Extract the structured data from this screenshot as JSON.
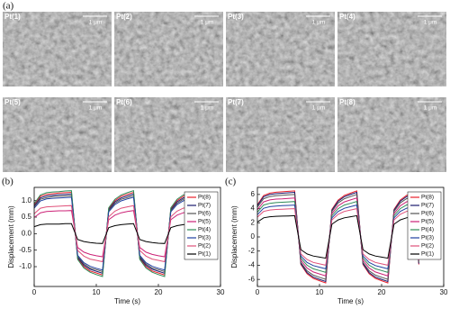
{
  "panel_a": {
    "label": "(a)",
    "images": [
      {
        "label": "Pt(1)",
        "scale": "1 μm"
      },
      {
        "label": "Pt(2)",
        "scale": "1 μm"
      },
      {
        "label": "Pt(3)",
        "scale": "1 μm"
      },
      {
        "label": "Pt(4)",
        "scale": "1 μm"
      },
      {
        "label": "Pt(5)",
        "scale": "1 μm"
      },
      {
        "label": "Pt(6)",
        "scale": "1 μm"
      },
      {
        "label": "Pt(7)",
        "scale": "1 μm"
      },
      {
        "label": "Pt(8)",
        "scale": "1 μm"
      }
    ]
  },
  "chart_data": [
    {
      "type": "line",
      "panel_label": "(b)",
      "x_label": "Time (s)",
      "y_label": "Displacement (mm)",
      "xlim": [
        0,
        30
      ],
      "xticks": [
        0,
        10,
        20,
        30
      ],
      "ylim": [
        -1.6,
        1.4
      ],
      "yticks": [
        {
          "value": -1,
          "label": "-1.0"
        },
        {
          "value": -0.5,
          "label": "-0.5"
        },
        {
          "value": 0,
          "label": "0.0"
        },
        {
          "value": 0.5,
          "label": "0.5"
        },
        {
          "value": 1,
          "label": "1.0"
        }
      ],
      "x": [
        0,
        1,
        2,
        3,
        4,
        5,
        6,
        7,
        8,
        9,
        10,
        11,
        12,
        13,
        14,
        15,
        16,
        17,
        18,
        19,
        20,
        21,
        22,
        23,
        24,
        25,
        26
      ],
      "series": [
        {
          "name": "Pt(8)",
          "color": "#e8202a",
          "values": [
            0.88,
            1.13,
            1.19,
            1.21,
            1.23,
            1.24,
            1.25,
            -0.75,
            -1,
            -1.13,
            -1.19,
            -1.25,
            0.75,
            1,
            1.13,
            1.19,
            1.25,
            -0.75,
            -1,
            -1.13,
            -1.19,
            -1.25,
            0.75,
            1,
            1.13,
            1.19,
            -0.75
          ]
        },
        {
          "name": "Pt(7)",
          "color": "#1a1a6e",
          "values": [
            0.84,
            1.08,
            1.14,
            1.16,
            1.18,
            1.19,
            1.2,
            -0.72,
            -0.96,
            -1.08,
            -1.14,
            -1.2,
            0.72,
            0.96,
            1.08,
            1.14,
            1.2,
            -0.72,
            -0.96,
            -1.08,
            -1.14,
            -1.2,
            0.72,
            0.96,
            1.08,
            1.14,
            -0.72
          ]
        },
        {
          "name": "Pt(6)",
          "color": "#555555",
          "values": [
            0.81,
            1.04,
            1.09,
            1.12,
            1.13,
            1.14,
            1.15,
            -0.69,
            -0.92,
            -1.04,
            -1.09,
            -1.15,
            0.69,
            0.92,
            1.04,
            1.09,
            1.15,
            -0.69,
            -0.92,
            -1.04,
            -1.09,
            -1.15,
            0.69,
            0.92,
            1.04,
            1.09,
            -0.69
          ]
        },
        {
          "name": "Pt(5)",
          "color": "#cc2277",
          "values": [
            0.49,
            0.63,
            0.67,
            0.68,
            0.69,
            0.69,
            0.7,
            -0.42,
            -0.56,
            -0.63,
            -0.67,
            -0.7,
            0.42,
            0.56,
            0.63,
            0.67,
            0.7,
            -0.42,
            -0.56,
            -0.63,
            -0.67,
            -0.7,
            0.42,
            0.56,
            0.63,
            0.67,
            -0.42
          ]
        },
        {
          "name": "Pt(4)",
          "color": "#2e8b57",
          "values": [
            0.91,
            1.17,
            1.24,
            1.26,
            1.27,
            1.29,
            1.3,
            -0.78,
            -1.04,
            -1.17,
            -1.24,
            -1.3,
            0.78,
            1.04,
            1.17,
            1.24,
            1.3,
            -0.78,
            -1.04,
            -1.17,
            -1.24,
            -1.3,
            0.78,
            1.04,
            1.17,
            1.24,
            -0.78
          ]
        },
        {
          "name": "Pt(3)",
          "color": "#1f3fa0",
          "values": [
            0.77,
            0.99,
            1.05,
            1.07,
            1.08,
            1.09,
            1.1,
            -0.66,
            -0.88,
            -0.99,
            -1.05,
            -1.1,
            0.66,
            0.88,
            0.99,
            1.05,
            1.1,
            -0.66,
            -0.88,
            -0.99,
            -1.05,
            -1.1,
            0.66,
            0.88,
            0.99,
            1.05,
            -0.66
          ]
        },
        {
          "name": "Pt(2)",
          "color": "#e0507a",
          "values": [
            0.6,
            0.77,
            0.81,
            0.82,
            0.83,
            0.84,
            0.85,
            -0.51,
            -0.68,
            -0.77,
            -0.81,
            -0.85,
            0.51,
            0.68,
            0.77,
            0.81,
            0.85,
            -0.51,
            -0.68,
            -0.77,
            -0.81,
            -0.85,
            0.51,
            0.68,
            0.77,
            0.81,
            -0.51
          ]
        },
        {
          "name": "Pt(1)",
          "color": "#000000",
          "values": [
            0.21,
            0.27,
            0.29,
            0.29,
            0.29,
            0.3,
            0.3,
            -0.18,
            -0.24,
            -0.27,
            -0.29,
            -0.3,
            0.18,
            0.24,
            0.27,
            0.29,
            0.3,
            -0.18,
            -0.24,
            -0.27,
            -0.29,
            -0.3,
            0.18,
            0.24,
            0.27,
            0.29,
            -0.18
          ]
        }
      ]
    },
    {
      "type": "line",
      "panel_label": "(c)",
      "x_label": "Time (s)",
      "y_label": "Displacement (mm)",
      "xlim": [
        0,
        30
      ],
      "xticks": [
        0,
        10,
        20,
        30
      ],
      "ylim": [
        -7,
        7
      ],
      "yticks": [
        -6,
        -4,
        -2,
        0,
        2,
        4,
        6
      ],
      "x": [
        0,
        1,
        2,
        3,
        4,
        5,
        6,
        7,
        8,
        9,
        10,
        11,
        12,
        13,
        14,
        15,
        16,
        17,
        18,
        19,
        20,
        21,
        22,
        23,
        24,
        25,
        26
      ],
      "series": [
        {
          "name": "Pt(8)",
          "color": "#e8202a",
          "values": [
            4.55,
            5.85,
            6.18,
            6.31,
            6.37,
            6.44,
            6.5,
            -3.9,
            -5.2,
            -5.85,
            -6.18,
            -6.5,
            3.9,
            5.2,
            5.85,
            6.18,
            6.5,
            -3.9,
            -5.2,
            -5.85,
            -6.18,
            -6.5,
            3.9,
            5.2,
            5.85,
            6.18,
            -3.9
          ]
        },
        {
          "name": "Pt(7)",
          "color": "#1a1a6e",
          "values": [
            4.41,
            5.67,
            5.99,
            6.11,
            6.17,
            6.24,
            6.3,
            -3.78,
            -5.04,
            -5.67,
            -5.99,
            -6.3,
            3.78,
            5.04,
            5.67,
            5.99,
            6.3,
            -3.78,
            -5.04,
            -5.67,
            -5.99,
            -6.3,
            3.78,
            5.04,
            5.67,
            5.99,
            -3.78
          ]
        },
        {
          "name": "Pt(6)",
          "color": "#555555",
          "values": [
            4.2,
            5.4,
            5.7,
            5.82,
            5.88,
            5.94,
            6,
            -3.6,
            -4.8,
            -5.4,
            -5.7,
            -6,
            3.6,
            4.8,
            5.4,
            5.7,
            6,
            -3.6,
            -4.8,
            -5.4,
            -5.7,
            -6,
            3.6,
            4.8,
            5.4,
            5.7,
            -3.6
          ]
        },
        {
          "name": "Pt(5)",
          "color": "#cc2277",
          "values": [
            3.85,
            4.95,
            5.23,
            5.34,
            5.39,
            5.45,
            5.5,
            -3.3,
            -4.4,
            -4.95,
            -5.23,
            -5.5,
            3.3,
            4.4,
            4.95,
            5.23,
            5.5,
            -3.3,
            -4.4,
            -4.95,
            -5.23,
            -5.5,
            3.3,
            4.4,
            4.95,
            5.23,
            -3.3
          ]
        },
        {
          "name": "Pt(4)",
          "color": "#2e8b57",
          "values": [
            3.5,
            4.5,
            4.75,
            4.85,
            4.9,
            4.95,
            5,
            -3,
            -4,
            -4.5,
            -4.75,
            -5,
            3,
            4,
            4.5,
            4.75,
            5,
            -3,
            -4,
            -4.5,
            -4.75,
            -5,
            3,
            4,
            4.5,
            4.75,
            -3
          ]
        },
        {
          "name": "Pt(3)",
          "color": "#1f3fa0",
          "values": [
            3.15,
            4.05,
            4.28,
            4.37,
            4.41,
            4.46,
            4.5,
            -2.7,
            -3.6,
            -4.05,
            -4.28,
            -4.5,
            2.7,
            3.6,
            4.05,
            4.28,
            4.5,
            -2.7,
            -3.6,
            -4.05,
            -4.28,
            -4.5,
            2.7,
            3.6,
            4.05,
            4.28,
            -2.7
          ]
        },
        {
          "name": "Pt(2)",
          "color": "#e0507a",
          "values": [
            2.8,
            3.6,
            3.8,
            3.88,
            3.92,
            3.96,
            4,
            -2.4,
            -3.2,
            -3.6,
            -3.8,
            -4,
            2.4,
            3.2,
            3.6,
            3.8,
            4,
            -2.4,
            -3.2,
            -3.6,
            -3.8,
            -4,
            2.4,
            3.2,
            3.6,
            3.8,
            -2.4
          ]
        },
        {
          "name": "Pt(1)",
          "color": "#000000",
          "values": [
            2.1,
            2.7,
            2.85,
            2.91,
            2.94,
            2.97,
            3,
            -1.8,
            -2.4,
            -2.7,
            -2.85,
            -3,
            1.8,
            2.4,
            2.7,
            2.85,
            3,
            -1.8,
            -2.4,
            -2.7,
            -2.85,
            -3,
            1.8,
            2.4,
            2.7,
            2.85,
            -1.8
          ]
        }
      ]
    }
  ]
}
